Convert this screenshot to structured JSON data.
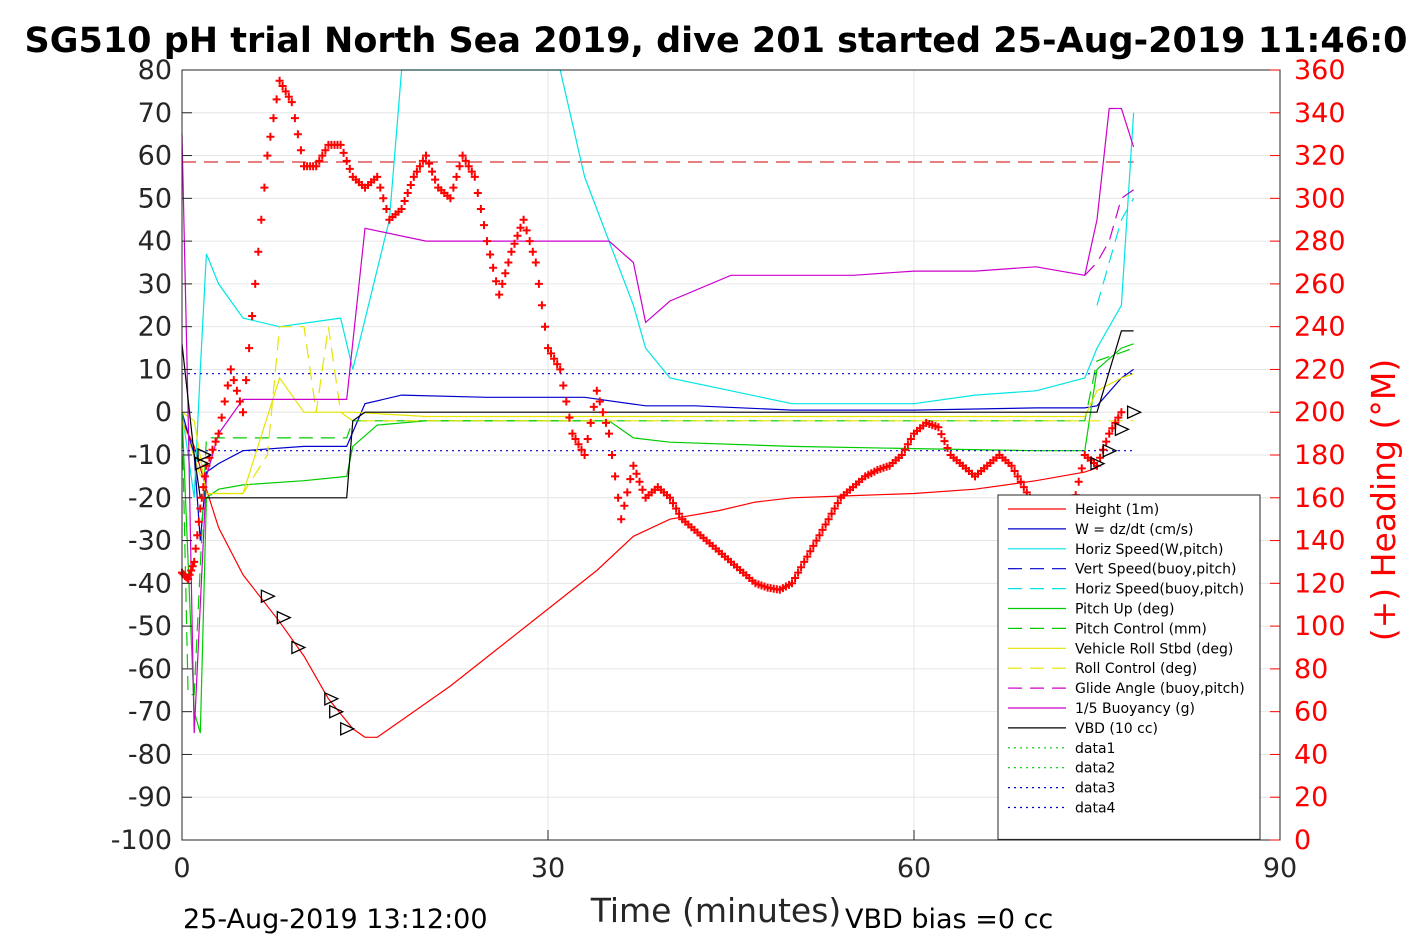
{
  "chart_data": {
    "type": "line",
    "title": "SG510 pH trial North Sea 2019, dive 201 started 25-Aug-2019 11:46:0",
    "xlabel": "Time (minutes)",
    "ylabel_right": "(+) Heading (°M)",
    "xlim": [
      0,
      90
    ],
    "ylim_left": [
      -100,
      80
    ],
    "ylim_right": [
      0,
      360
    ],
    "x_ticks": [
      "0",
      "30",
      "60",
      "90"
    ],
    "y_left_ticks": [
      "80",
      "70",
      "60",
      "50",
      "40",
      "30",
      "20",
      "10",
      "0",
      "-10",
      "-20",
      "-30",
      "-40",
      "-50",
      "-60",
      "-70",
      "-80",
      "-90",
      "-100"
    ],
    "y_right_ticks": [
      "360",
      "340",
      "320",
      "300",
      "280",
      "260",
      "240",
      "220",
      "200",
      "180",
      "160",
      "140",
      "120",
      "100",
      "80",
      "60",
      "40",
      "20",
      "0"
    ],
    "grid": true,
    "legend_position": "bottom-right",
    "series": [
      {
        "name": "Height (1m)",
        "color": "#ff0000",
        "style": "solid",
        "x": [
          0,
          1,
          2,
          3,
          5,
          8,
          10,
          12,
          14,
          15,
          16,
          18,
          22,
          26,
          30,
          34,
          37,
          40,
          44,
          47,
          50,
          55,
          60,
          65,
          70,
          74,
          75
        ],
        "y": [
          -2,
          -8,
          -18,
          -27,
          -38,
          -49,
          -57,
          -67,
          -74,
          -76,
          -76,
          -72,
          -64,
          -55,
          -46,
          -37,
          -29,
          -25,
          -23,
          -21,
          -20,
          -19.5,
          -19,
          -18,
          -16,
          -14,
          -13
        ]
      },
      {
        "name": "W = dz/dt (cm/s)",
        "color": "#0000cc",
        "style": "solid",
        "x": [
          0,
          1,
          1.5,
          2,
          3,
          5,
          10,
          13.5,
          15,
          18,
          25,
          33,
          38,
          42,
          50,
          60,
          70,
          74,
          75,
          77,
          78
        ],
        "y": [
          0,
          -10,
          -30,
          -14,
          -12,
          -9,
          -8,
          -8,
          2,
          4,
          3.5,
          3.5,
          1.5,
          1.5,
          0.5,
          0.5,
          1,
          1,
          1.5,
          8,
          10
        ]
      },
      {
        "name": "Horiz Speed(W,pitch)",
        "color": "#00e5e5",
        "style": "solid",
        "x": [
          0,
          1,
          1.5,
          2,
          3,
          5,
          8,
          13,
          14,
          17,
          18,
          19,
          23,
          27,
          31,
          33,
          35,
          37,
          38,
          40,
          45,
          50,
          55,
          60,
          65,
          70,
          74,
          75,
          77,
          78
        ],
        "y": [
          0,
          -20,
          10,
          37,
          30,
          22,
          20,
          22,
          10,
          45,
          80,
          80,
          80,
          80,
          80,
          55,
          40,
          25,
          15,
          8,
          5,
          2,
          2,
          2,
          4,
          5,
          8,
          15,
          25,
          70
        ]
      },
      {
        "name": "Vert Speed(buoy,pitch)",
        "color": "#0000cc",
        "style": "dashed",
        "x": [],
        "y": []
      },
      {
        "name": "Horiz Speed(buoy,pitch)",
        "color": "#00e5e5",
        "style": "dashed",
        "x": [
          75,
          76,
          77,
          78
        ],
        "y": [
          25,
          35,
          45,
          50
        ]
      },
      {
        "name": "Pitch Up (deg)",
        "color": "#00cc00",
        "style": "solid",
        "x": [
          0,
          1,
          1.5,
          2,
          3,
          5,
          10,
          13.5,
          14,
          16,
          20,
          25,
          30,
          35,
          37,
          40,
          50,
          60,
          70,
          74,
          75,
          77,
          78
        ],
        "y": [
          0,
          -70,
          -75,
          -20,
          -18,
          -17,
          -16,
          -15,
          -8,
          -3,
          -2,
          -2,
          -2,
          -2,
          -6,
          -7,
          -8,
          -8.5,
          -9,
          -9,
          10,
          15,
          16
        ]
      },
      {
        "name": "Pitch Control (mm)",
        "color": "#00cc00",
        "style": "dashed",
        "x": [
          0,
          0.5,
          1,
          2,
          3,
          13.5,
          14,
          30,
          60,
          74,
          75,
          78
        ],
        "y": [
          0,
          -66,
          -66,
          -6,
          -6,
          -6,
          -2,
          -2,
          -2,
          -2,
          12,
          15
        ]
      },
      {
        "name": "Vehicle Roll Stbd (deg)",
        "color": "#e5e500",
        "style": "solid",
        "x": [
          0,
          1,
          2,
          5,
          8,
          10,
          12,
          13,
          14,
          20,
          30,
          40,
          50,
          60,
          70,
          74,
          75,
          77,
          78
        ],
        "y": [
          0,
          -2,
          -19,
          -19,
          8,
          0,
          0,
          0,
          0,
          -1,
          -1,
          -1,
          -1,
          -1,
          -1,
          -1,
          5,
          8,
          9
        ]
      },
      {
        "name": "Roll Control (deg)",
        "color": "#e5e500",
        "style": "dashed",
        "x": [
          0,
          2,
          5,
          7,
          8,
          10,
          11,
          12,
          13,
          14,
          78
        ],
        "y": [
          -2,
          -19,
          -19,
          -10,
          20,
          20,
          0,
          20,
          0,
          -2,
          -2
        ]
      },
      {
        "name": "Glide Angle (buoy,pitch)",
        "color": "#cc00cc",
        "style": "dashed",
        "x": [
          74,
          75,
          76,
          77,
          78
        ],
        "y": [
          32,
          35,
          40,
          50,
          52
        ]
      },
      {
        "name": "1/5 Buoyancy (g)",
        "color": "#cc00cc",
        "style": "solid",
        "x": [
          0,
          0.5,
          1,
          2,
          3,
          5,
          10,
          13.5,
          15,
          20,
          25,
          30,
          35,
          37,
          38,
          40,
          45,
          50,
          55,
          60,
          65,
          70,
          74,
          75,
          76,
          77,
          78
        ],
        "y": [
          65,
          0,
          -75,
          -15,
          -5,
          3,
          3,
          3,
          43,
          40,
          40,
          40,
          40,
          35,
          21,
          26,
          32,
          32,
          32,
          33,
          33,
          34,
          32,
          45,
          71,
          71,
          62
        ]
      },
      {
        "name": "VBD (10 cc)",
        "color": "#000000",
        "style": "solid",
        "x": [
          0,
          1,
          1.5,
          13.5,
          14,
          15,
          74,
          75,
          77,
          78
        ],
        "y": [
          16,
          -10,
          -20,
          -20,
          -2,
          0,
          0,
          0,
          19,
          19
        ]
      },
      {
        "name": "data1",
        "color": "#00cc00",
        "style": "dotted",
        "x": [],
        "y": []
      },
      {
        "name": "data2",
        "color": "#00cc00",
        "style": "dotted",
        "x": [],
        "y": []
      },
      {
        "name": "data3",
        "color": "#0000cc",
        "style": "dotted",
        "x": [
          0,
          78
        ],
        "y": [
          9,
          9
        ]
      },
      {
        "name": "data4",
        "color": "#0000cc",
        "style": "dotted",
        "x": [
          0,
          78
        ],
        "y": [
          -9,
          -9
        ]
      }
    ],
    "reference_lines": [
      {
        "axis": "left",
        "y": 58.5,
        "color": "#cc0000",
        "style": "dashed",
        "x": [
          0,
          78
        ]
      }
    ],
    "heading_series": {
      "name": "(+) Heading (°M)",
      "color": "#ff0000",
      "marker": "+",
      "axis": "right",
      "x": [
        0,
        0.5,
        1,
        1.5,
        2,
        3,
        4,
        5,
        6,
        7,
        8,
        9,
        10,
        11,
        12,
        13,
        14,
        15,
        16,
        17,
        18,
        19,
        20,
        21,
        22,
        23,
        24,
        25,
        26,
        27,
        28,
        29,
        30,
        31,
        32,
        33,
        34,
        35,
        36,
        37,
        38,
        39,
        40,
        41,
        42,
        43,
        44,
        45,
        46,
        47,
        48,
        49,
        50,
        51,
        52,
        53,
        54,
        55,
        56,
        57,
        58,
        59,
        60,
        61,
        62,
        63,
        64,
        65,
        66,
        67,
        68,
        69,
        70,
        71,
        72,
        73,
        74,
        75,
        76,
        77
      ],
      "y": [
        125,
        122,
        130,
        155,
        175,
        190,
        220,
        200,
        260,
        320,
        355,
        345,
        315,
        315,
        325,
        325,
        310,
        305,
        310,
        290,
        295,
        310,
        320,
        305,
        300,
        320,
        310,
        280,
        255,
        275,
        290,
        270,
        230,
        220,
        190,
        180,
        210,
        190,
        150,
        175,
        160,
        165,
        160,
        150,
        145,
        140,
        135,
        130,
        125,
        120,
        118,
        117,
        120,
        130,
        140,
        150,
        160,
        165,
        170,
        173,
        175,
        180,
        190,
        195,
        193,
        180,
        175,
        170,
        175,
        180,
        175,
        165,
        155,
        150,
        145,
        155,
        180,
        175,
        190,
        200
      ]
    },
    "markers": {
      "name": "triangles",
      "color": "#000000",
      "x": [
        1.8,
        1.6,
        7.0,
        8.3,
        9.5,
        12.2,
        12.6,
        13.5,
        75.0,
        76.0,
        77.0,
        78.0
      ],
      "y": [
        -10,
        -12,
        -43,
        -48,
        -55,
        -67,
        -70,
        -74,
        -12,
        -9,
        -4,
        0
      ]
    }
  },
  "footer": {
    "timestamp": "25-Aug-2019 13:12:00",
    "vbd_bias": "VBD bias =0 cc"
  }
}
